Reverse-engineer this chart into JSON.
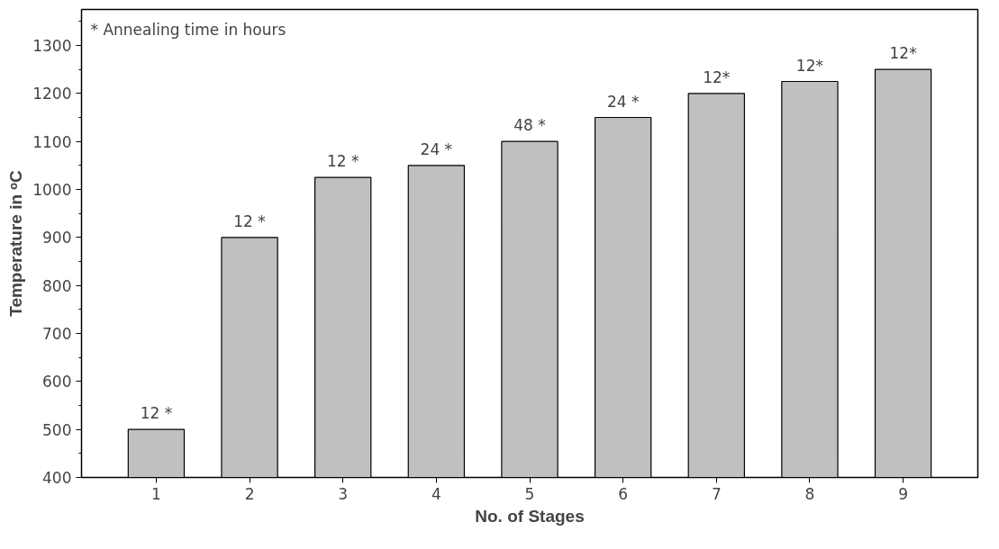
{
  "chart_data": {
    "type": "bar",
    "xlabel": "No. of Stages",
    "ylabel": "Temperature in ᵒC",
    "categories": [
      "1",
      "2",
      "3",
      "4",
      "5",
      "6",
      "7",
      "8",
      "9"
    ],
    "series": [
      {
        "color": "#c0c0c0",
        "values": [
          500,
          900,
          1025,
          1050,
          1100,
          1150,
          1200,
          1225,
          1250
        ]
      }
    ],
    "value_labels": [
      "12 *",
      "12 *",
      "12 *",
      "24 *",
      "48 *",
      "24 *",
      "12*",
      "12*",
      "12*"
    ],
    "annotations": [
      "* Annealing time in hours"
    ],
    "ylim": [
      400,
      1375
    ],
    "yticks": [
      400,
      500,
      600,
      700,
      800,
      900,
      1000,
      1100,
      1200,
      1300
    ],
    "grid": false
  }
}
